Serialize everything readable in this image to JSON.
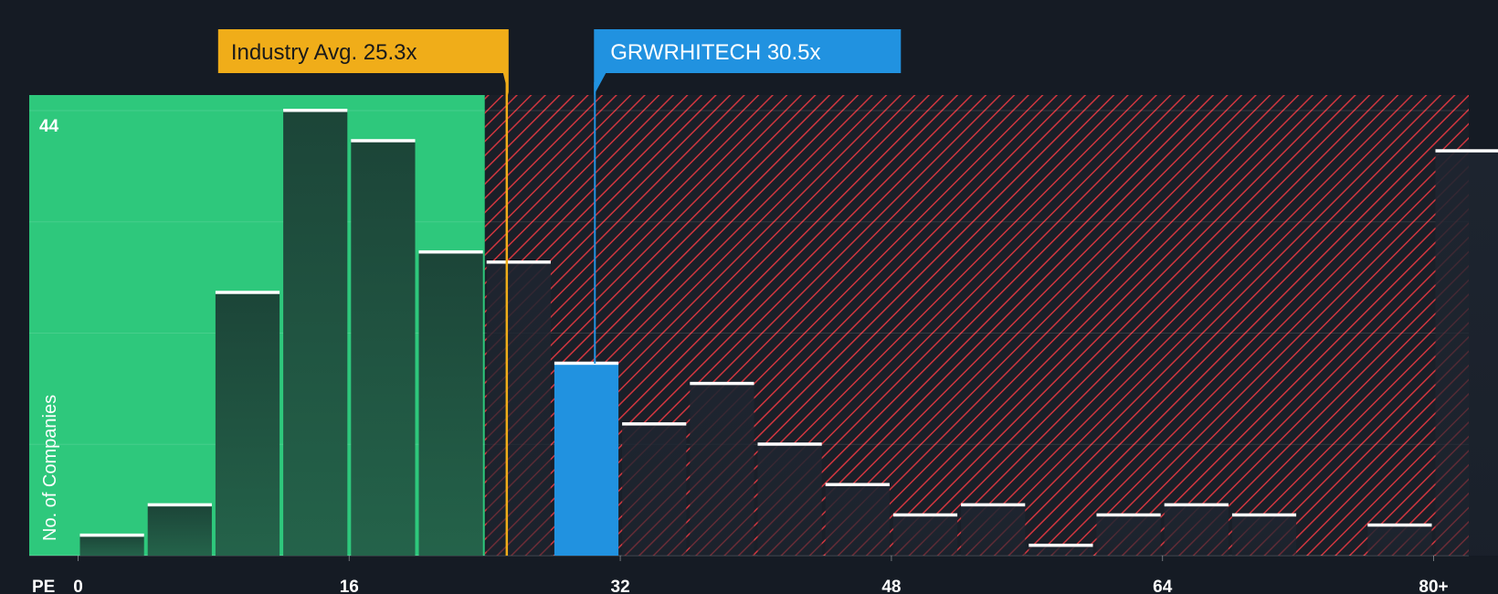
{
  "chart_data": {
    "type": "bar",
    "title": "",
    "xlabel": "PE",
    "ylabel": "No. of Companies",
    "y_max_label": "44",
    "ylim": [
      0,
      46
    ],
    "x_tick_labels": [
      "0",
      "16",
      "32",
      "48",
      "64",
      "80+"
    ],
    "bin_width": 4,
    "bins": [
      {
        "start": 0,
        "value": 2
      },
      {
        "start": 4,
        "value": 5
      },
      {
        "start": 8,
        "value": 26
      },
      {
        "start": 12,
        "value": 44
      },
      {
        "start": 16,
        "value": 41
      },
      {
        "start": 20,
        "value": 30
      },
      {
        "start": 24,
        "value": 29
      },
      {
        "start": 28,
        "value": 19
      },
      {
        "start": 32,
        "value": 13
      },
      {
        "start": 36,
        "value": 17
      },
      {
        "start": 40,
        "value": 11
      },
      {
        "start": 44,
        "value": 7
      },
      {
        "start": 48,
        "value": 4
      },
      {
        "start": 52,
        "value": 5
      },
      {
        "start": 56,
        "value": 1
      },
      {
        "start": 60,
        "value": 4
      },
      {
        "start": 64,
        "value": 5
      },
      {
        "start": 68,
        "value": 4
      },
      {
        "start": 72,
        "value": 0
      },
      {
        "start": 76,
        "value": 3
      },
      {
        "start": 80,
        "value": 40
      }
    ],
    "industry_avg": {
      "value": 25.3,
      "label": "Industry Avg. 25.3x"
    },
    "company": {
      "value": 30.5,
      "label": "GRWRHITECH 30.5x"
    },
    "colors": {
      "background": "#151b24",
      "fair_zone": "#2ec87c",
      "bar_in_fair": "#1e4a3e",
      "bar_in_over": "#1e232c",
      "overvalued_hatch": "#d0363f",
      "company_bar": "#2192e0",
      "industry_marker": "#f0ad19",
      "bar_cap": "#ffffff",
      "text": "#ffffff"
    }
  }
}
